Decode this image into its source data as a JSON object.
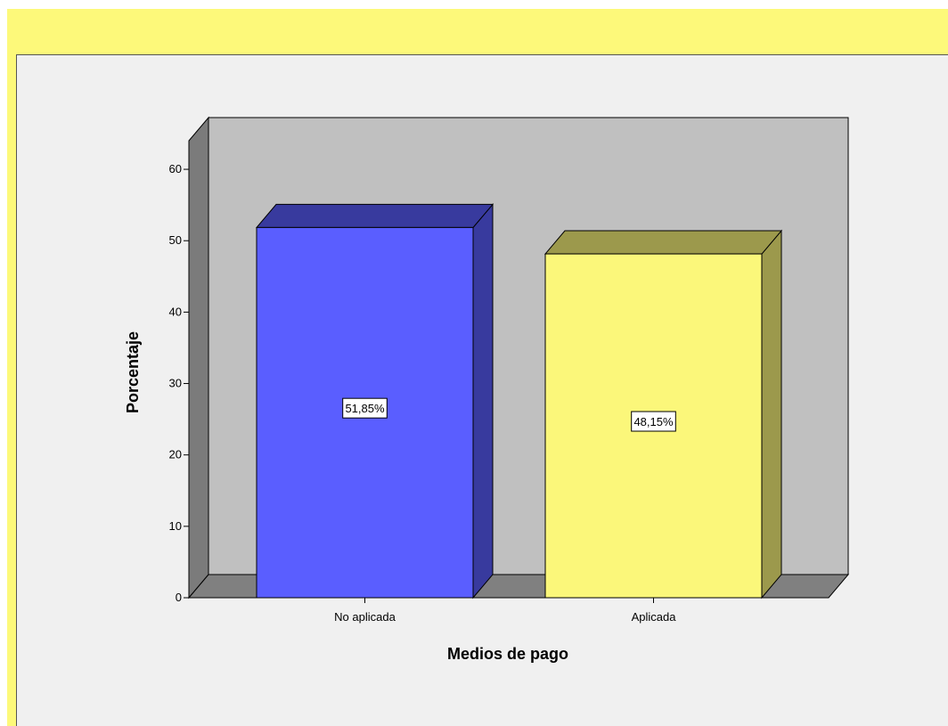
{
  "chart_data": {
    "type": "bar",
    "style": "3d",
    "categories": [
      "No aplicada",
      "Aplicada"
    ],
    "values": [
      51.85,
      48.15
    ],
    "data_labels": [
      "51,85%",
      "48,15%"
    ],
    "bar_colors": [
      "#5a5eff",
      "#fbf77a"
    ],
    "ylabel": "Porcentaje",
    "xlabel": "Medios de pago",
    "ylim": [
      0,
      64
    ],
    "yticks": [
      0,
      10,
      20,
      30,
      40,
      50,
      60
    ],
    "grid": false,
    "legend": "none"
  },
  "colors": {
    "frame_bg": "#fdf97a",
    "chart_bg": "#f0f0f0",
    "wall_back": "#c0c0c0",
    "wall_side": "#7b7b7b",
    "floor": "#808080"
  }
}
